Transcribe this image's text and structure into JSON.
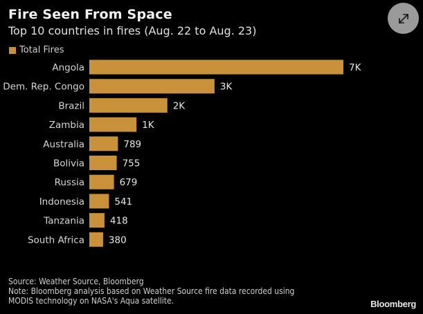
{
  "chart_data": {
    "type": "bar",
    "orientation": "horizontal",
    "title": "Fire Seen From Space",
    "subtitle": "Top 10 countries in fires (Aug. 22 to Aug. 23)",
    "categories": [
      "Angola",
      "Dem. Rep. Congo",
      "Brazil",
      "Zambia",
      "Australia",
      "Bolivia",
      "Russia",
      "Indonesia",
      "Tanzania",
      "South Africa"
    ],
    "series": [
      {
        "name": "Total Fires",
        "color": "#c8913a",
        "values": [
          7000,
          3450,
          2150,
          1300,
          789,
          755,
          679,
          541,
          418,
          380
        ],
        "labels": [
          "7K",
          "3K",
          "2K",
          "1K",
          "789",
          "755",
          "679",
          "541",
          "418",
          "380"
        ]
      }
    ],
    "xlabel": "",
    "ylabel": "",
    "xlim": [
      0,
      7000
    ],
    "grid": false,
    "legend_position": "top-left"
  },
  "header": {
    "title": "Fire Seen From Space",
    "subtitle": "Top 10 countries in fires (Aug. 22 to Aug. 23)",
    "legend_label": "Total Fires"
  },
  "footer": {
    "source": "Source: Weather Source, Bloomberg",
    "note_line1": "Note: Bloomberg analysis based on Weather Source fire data recorded using",
    "note_line2": "MODIS technology on NASA's Aqua satellite.",
    "brand": "Bloomberg"
  },
  "controls": {
    "expand_icon": "expand-arrows-icon"
  },
  "colors": {
    "bar": "#c8913a",
    "background": "#000000",
    "expand_button": "#9a9a9a"
  }
}
